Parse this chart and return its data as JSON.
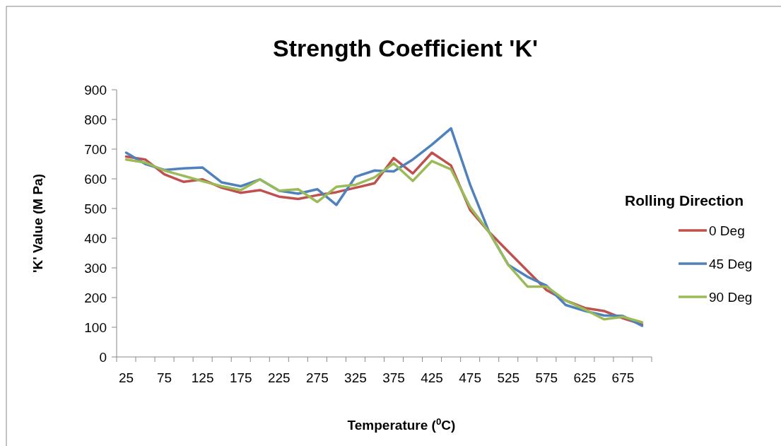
{
  "chart_data": {
    "type": "line",
    "title": "Strength Coefficient 'K'",
    "xlabel": "Temperature ($^{0}$C)",
    "ylabel": "'K' Value (M Pa)",
    "legend_title": "Rolling Direction",
    "legend": "right",
    "grid": false,
    "marker": "none",
    "line_style": "solid",
    "categories": [
      "25",
      null,
      "75",
      null,
      "125",
      null,
      "175",
      null,
      "225",
      null,
      "275",
      null,
      "325",
      null,
      "375",
      null,
      "425",
      null,
      "475",
      null,
      "525",
      null,
      "575",
      null,
      "625",
      null,
      "675",
      null
    ],
    "ylim": [
      0,
      900
    ],
    "yticks": [
      0,
      100,
      200,
      300,
      400,
      500,
      600,
      700,
      800,
      900
    ],
    "series": [
      {
        "name": "0 Deg",
        "color": "#c0504d",
        "values": [
          675,
          665,
          615,
          590,
          598,
          570,
          553,
          562,
          540,
          532,
          545,
          555,
          570,
          585,
          670,
          618,
          688,
          645,
          495,
          420,
          355,
          290,
          225,
          190,
          165,
          155,
          130,
          110
        ]
      },
      {
        "name": "45 Deg",
        "color": "#4f81bd",
        "values": [
          688,
          650,
          630,
          635,
          638,
          588,
          575,
          598,
          560,
          550,
          565,
          512,
          607,
          628,
          625,
          665,
          715,
          770,
          580,
          420,
          310,
          270,
          240,
          175,
          155,
          140,
          138,
          105
        ]
      },
      {
        "name": "90 Deg",
        "color": "#9bbb59",
        "values": [
          665,
          655,
          628,
          610,
          592,
          575,
          562,
          598,
          560,
          565,
          522,
          573,
          580,
          605,
          652,
          593,
          660,
          632,
          505,
          420,
          310,
          237,
          237,
          190,
          160,
          127,
          135,
          117
        ]
      }
    ]
  }
}
